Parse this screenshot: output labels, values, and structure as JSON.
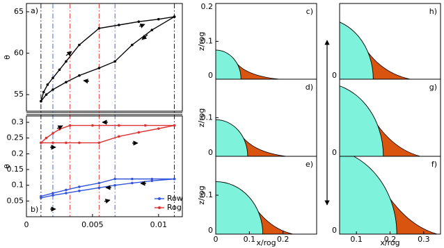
{
  "chart_data": [
    {
      "type": "line",
      "label": "a)",
      "ylabel": "θ",
      "xlim": [
        0,
        0.0118
      ],
      "ylim": [
        53,
        66
      ],
      "yticks": [
        55,
        60,
        65
      ],
      "series": [
        {
          "color": "#000000",
          "x": [
            0.0011,
            0.0013,
            0.0016,
            0.002,
            0.0025,
            0.003,
            0.004,
            0.0055,
            0.007,
            0.0085,
            0.01,
            0.0112
          ],
          "values": [
            54.2,
            55.3,
            56.2,
            57.0,
            58.0,
            59.0,
            61.0,
            63.0,
            63.4,
            63.8,
            64.1,
            64.4
          ]
        },
        {
          "color": "#000000",
          "x": [
            0.0011,
            0.0015,
            0.002,
            0.003,
            0.004,
            0.0055,
            0.0067,
            0.008,
            0.0095,
            0.0112
          ],
          "values": [
            54.2,
            55.0,
            55.6,
            56.5,
            57.3,
            58.2,
            59.0,
            61.0,
            62.8,
            64.4
          ]
        }
      ],
      "transitions": [
        {
          "x": 0.0011,
          "color": "#000000"
        },
        {
          "x": 0.002,
          "color": "#3355dd"
        },
        {
          "x": 0.0033,
          "color": "#e03030"
        },
        {
          "x": 0.0055,
          "color": "#e03030"
        },
        {
          "x": 0.0067,
          "color": "#3355dd"
        },
        {
          "x": 0.0112,
          "color": "#000000"
        }
      ]
    },
    {
      "type": "line",
      "label": "b)",
      "ylabel": "θ",
      "xlim": [
        0,
        0.0118
      ],
      "ylim": [
        0,
        0.32
      ],
      "yticks": [
        0.05,
        0.1,
        0.15,
        0.2,
        0.25,
        0.3
      ],
      "xticks": [
        0,
        0.005,
        0.01
      ],
      "legend": "lower right",
      "series": [
        {
          "name": "Row",
          "color": "#3355dd",
          "x": [
            0.0011,
            0.002,
            0.003,
            0.004,
            0.0055,
            0.0067,
            0.008,
            0.0095,
            0.0112
          ],
          "values": [
            0.065,
            0.075,
            0.085,
            0.095,
            0.107,
            0.12,
            0.12,
            0.12,
            0.12
          ]
        },
        {
          "color": "#3355dd",
          "x": [
            0.0011,
            0.002,
            0.003,
            0.004,
            0.0055,
            0.0067,
            0.008,
            0.0095,
            0.0112
          ],
          "values": [
            0.06,
            0.068,
            0.075,
            0.082,
            0.092,
            0.1,
            0.107,
            0.114,
            0.12
          ]
        },
        {
          "name": "Rog",
          "color": "#e03030",
          "x": [
            0.0011,
            0.0015,
            0.002,
            0.0025,
            0.0033,
            0.005,
            0.007,
            0.009,
            0.0112
          ],
          "values": [
            0.235,
            0.25,
            0.265,
            0.278,
            0.29,
            0.29,
            0.29,
            0.29,
            0.29
          ]
        },
        {
          "color": "#e03030",
          "x": [
            0.0011,
            0.002,
            0.003,
            0.004,
            0.0055,
            0.007,
            0.0085,
            0.01,
            0.0112
          ],
          "values": [
            0.235,
            0.235,
            0.235,
            0.235,
            0.235,
            0.255,
            0.268,
            0.28,
            0.29
          ]
        }
      ]
    },
    {
      "type": "profile",
      "label": "c)",
      "ylabel": "z/rog",
      "xlim": [
        0,
        0.3
      ],
      "ylim": [
        0,
        0.2
      ],
      "yticks": [
        0,
        0.1,
        0.2
      ]
    },
    {
      "type": "profile",
      "label": "d)",
      "ylabel": "z/rog",
      "xlim": [
        0,
        0.3
      ],
      "ylim": [
        0,
        0.2
      ],
      "yticks": [
        0,
        0.1
      ]
    },
    {
      "type": "profile",
      "label": "e)",
      "ylabel": "z/rog",
      "xlabel": "x/rog",
      "xlim": [
        0,
        0.3
      ],
      "ylim": [
        0,
        0.2
      ],
      "yticks": [
        0,
        0.1
      ],
      "xticks": [
        0,
        0.1,
        0.2
      ]
    },
    {
      "type": "profile",
      "label": "h)",
      "xlim": [
        0.05,
        0.35
      ],
      "ylim": [
        0,
        0.2
      ],
      "yticks": [
        0
      ]
    },
    {
      "type": "profile",
      "label": "g)",
      "xlim": [
        0.05,
        0.35
      ],
      "ylim": [
        0,
        0.2
      ],
      "yticks": [
        0
      ]
    },
    {
      "type": "profile",
      "label": "f)",
      "xlabel": "x/rog",
      "xlim": [
        0.05,
        0.35
      ],
      "ylim": [
        0,
        0.2
      ],
      "yticks": [
        0
      ],
      "xticks": [
        0.1,
        0.2,
        0.3
      ]
    }
  ]
}
